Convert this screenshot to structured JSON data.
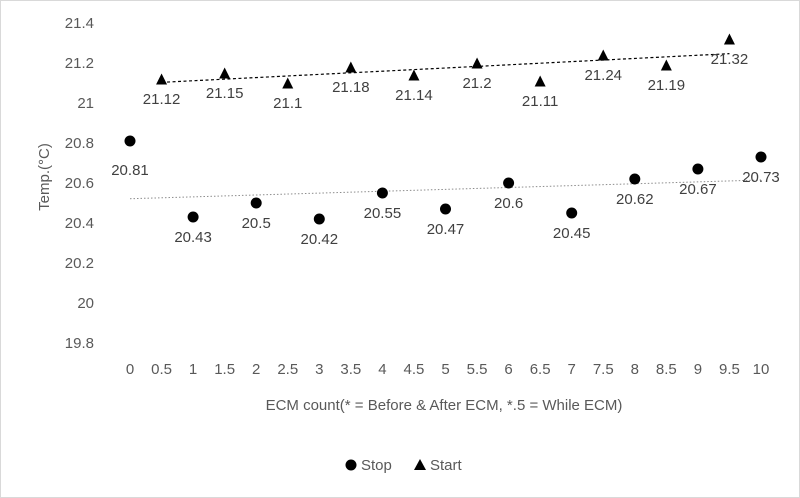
{
  "chart_data": {
    "type": "scatter",
    "title": "",
    "xlabel": "ECM count(* = Before & After ECM, *.5 = While ECM)",
    "ylabel": "Temp.(°C)",
    "xlim": [
      0,
      10
    ],
    "ylim": [
      19.8,
      21.4
    ],
    "x_ticks": [
      "0",
      "0.5",
      "1",
      "1.5",
      "2",
      "2.5",
      "3",
      "3.5",
      "4",
      "4.5",
      "5",
      "5.5",
      "6",
      "6.5",
      "7",
      "7.5",
      "8",
      "8.5",
      "9",
      "9.5",
      "10"
    ],
    "y_ticks": [
      "19.8",
      "20",
      "20.2",
      "20.4",
      "20.6",
      "20.8",
      "21",
      "21.2",
      "21.4"
    ],
    "grid": false,
    "legend_position": "bottom",
    "series": [
      {
        "name": "Stop",
        "marker": "circle",
        "color": "#000000",
        "trendline": "linear (dotted)",
        "x": [
          0,
          1,
          2,
          3,
          4,
          5,
          6,
          7,
          8,
          9,
          10
        ],
        "y": [
          20.81,
          20.43,
          20.5,
          20.42,
          20.55,
          20.47,
          20.6,
          20.45,
          20.62,
          20.67,
          20.73
        ],
        "labels": [
          "20.81",
          "20.43",
          "20.5",
          "20.42",
          "20.55",
          "20.47",
          "20.6",
          "20.45",
          "20.62",
          "20.67",
          "20.73"
        ]
      },
      {
        "name": "Start",
        "marker": "triangle",
        "color": "#000000",
        "trendline": "linear (dashed)",
        "x": [
          0.5,
          1.5,
          2.5,
          3.5,
          4.5,
          5.5,
          6.5,
          7.5,
          8.5,
          9.5
        ],
        "y": [
          21.12,
          21.15,
          21.1,
          21.18,
          21.14,
          21.2,
          21.11,
          21.24,
          21.19,
          21.32
        ],
        "labels": [
          "21.12",
          "21.15",
          "21.1",
          "21.18",
          "21.14",
          "21.2",
          "21.11",
          "21.24",
          "21.19",
          "21.32"
        ]
      }
    ]
  }
}
